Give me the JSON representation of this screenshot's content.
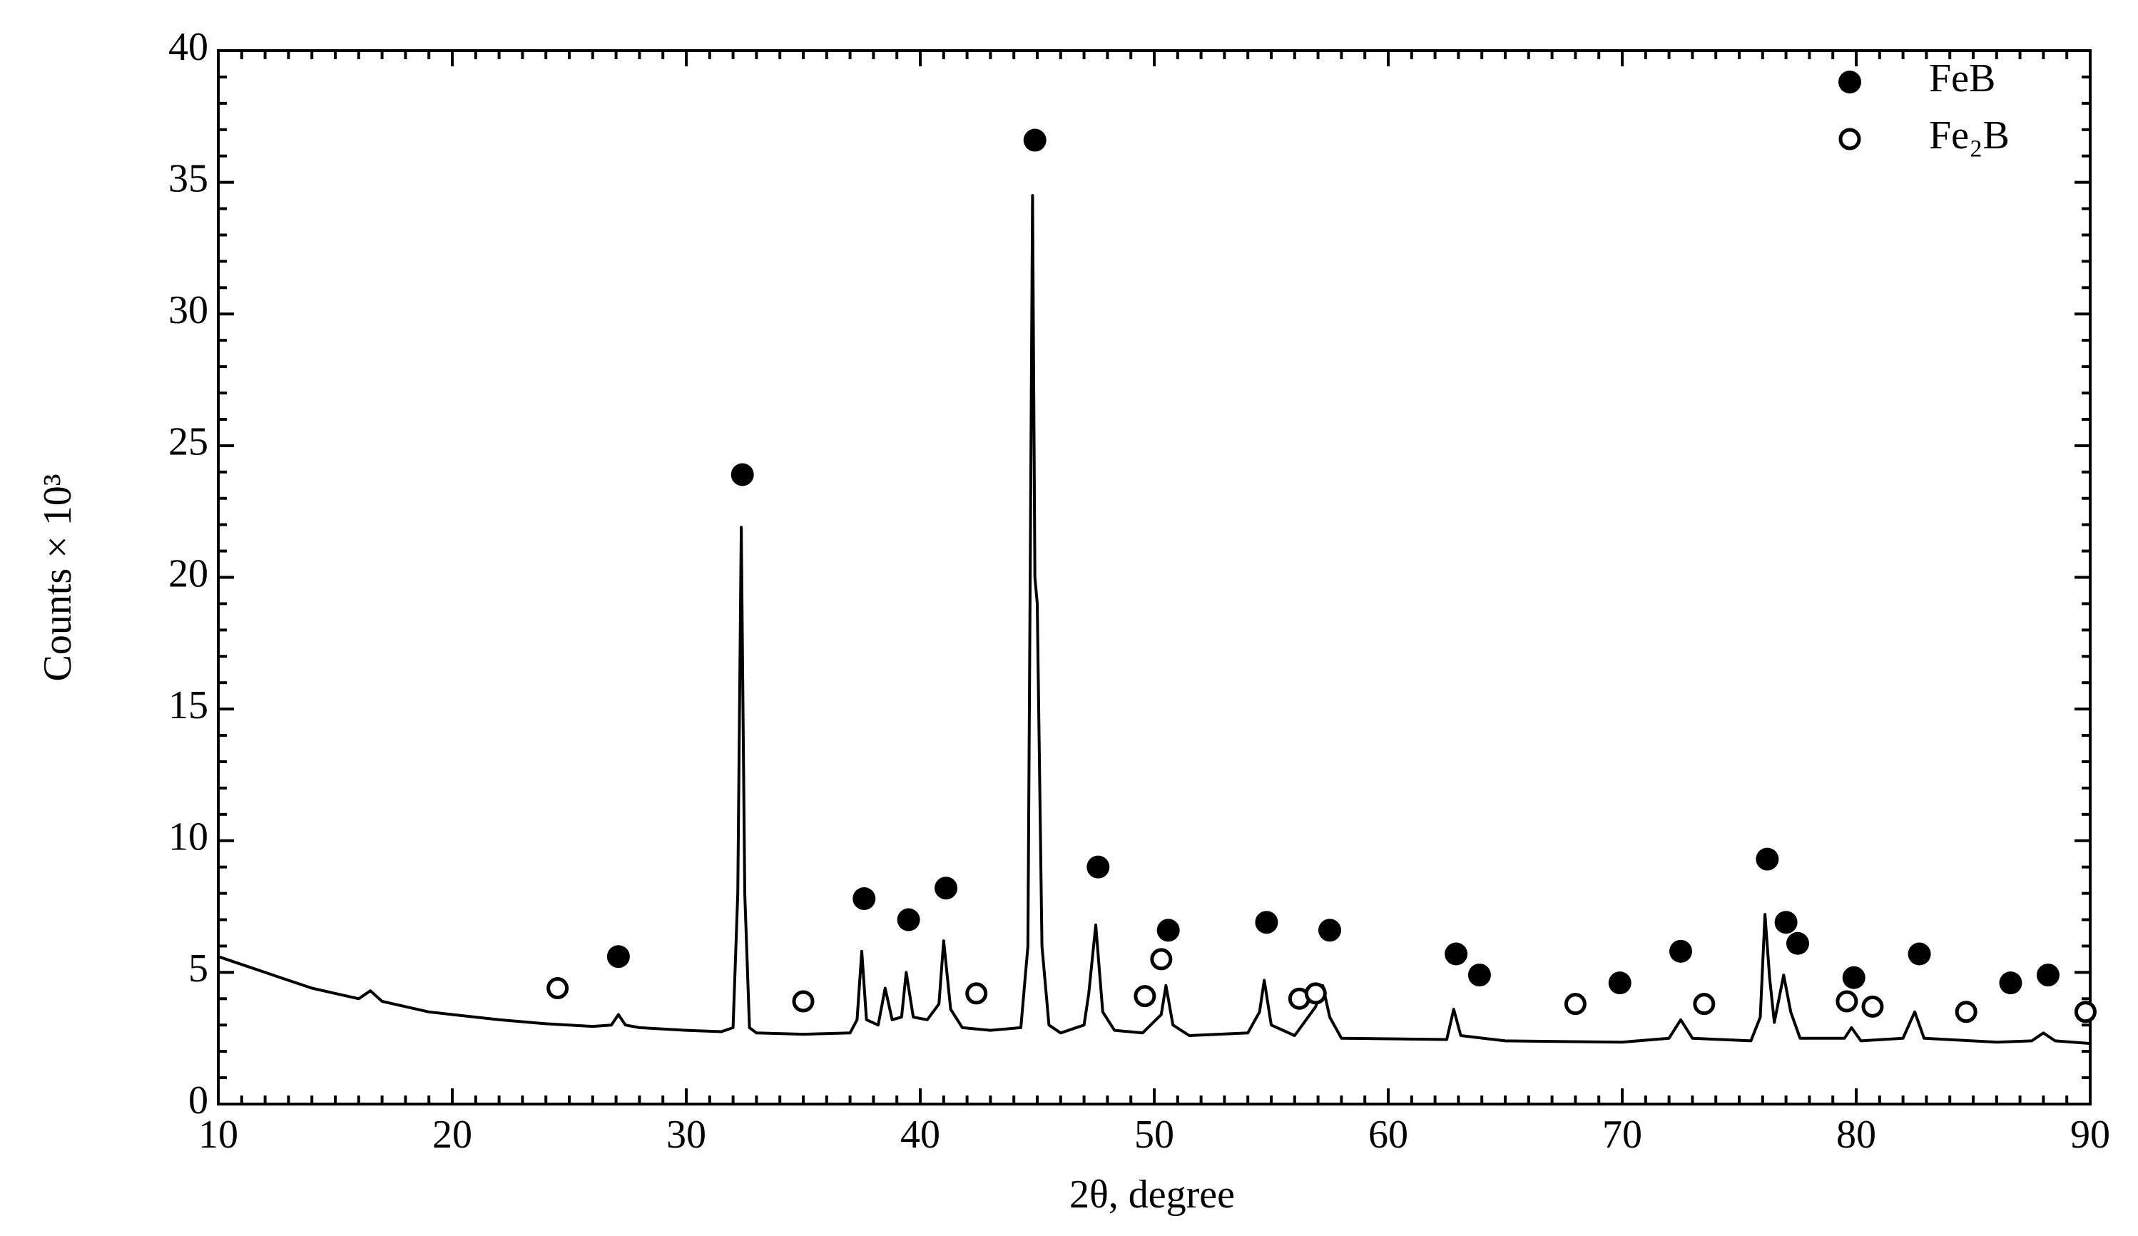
{
  "chart_data": {
    "type": "line",
    "xlabel": "2θ, degree",
    "ylabel": "Counts × 10³",
    "xlim": [
      10,
      90
    ],
    "ylim": [
      0,
      40
    ],
    "xticks": [
      10,
      20,
      30,
      40,
      50,
      60,
      70,
      80,
      90
    ],
    "yticks": [
      0,
      5,
      10,
      15,
      20,
      25,
      30,
      35,
      40
    ],
    "xminorticks": [
      11,
      12,
      13,
      14,
      15,
      16,
      17,
      18,
      19,
      21,
      22,
      23,
      24,
      25,
      26,
      27,
      28,
      29,
      31,
      32,
      33,
      34,
      35,
      36,
      37,
      38,
      39,
      41,
      42,
      43,
      44,
      45,
      46,
      47,
      48,
      49,
      51,
      52,
      53,
      54,
      55,
      56,
      57,
      58,
      59,
      61,
      62,
      63,
      64,
      65,
      66,
      67,
      68,
      69,
      71,
      72,
      73,
      74,
      75,
      76,
      77,
      78,
      79,
      81,
      82,
      83,
      84,
      85,
      86,
      87,
      88,
      89
    ],
    "yminorticks": [
      1,
      2,
      3,
      4,
      6,
      7,
      8,
      9,
      11,
      12,
      13,
      14,
      16,
      17,
      18,
      19,
      21,
      22,
      23,
      24,
      26,
      27,
      28,
      29,
      31,
      32,
      33,
      34,
      36,
      37,
      38,
      39
    ],
    "legend": "upper right",
    "x": [
      10,
      11,
      12,
      13,
      14,
      15,
      16,
      16.5,
      17,
      18,
      19,
      20,
      22,
      24,
      26,
      26.8,
      27.1,
      27.4,
      28,
      30,
      31.5,
      32.0,
      32.2,
      32.35,
      32.5,
      32.7,
      33,
      35,
      37,
      37.3,
      37.5,
      37.7,
      38.2,
      38.5,
      38.8,
      39.2,
      39.4,
      39.7,
      40.3,
      40.8,
      41.0,
      41.3,
      41.8,
      43,
      44.3,
      44.6,
      44.8,
      44.9,
      45.0,
      45.2,
      45.5,
      46,
      47,
      47.2,
      47.5,
      47.8,
      48.3,
      49.5,
      50.3,
      50.5,
      50.8,
      51.5,
      54,
      54.5,
      54.7,
      55.0,
      56,
      56.9,
      57.2,
      57.5,
      58,
      62.5,
      62.8,
      63.1,
      65,
      70,
      72,
      72.5,
      73,
      75.5,
      75.9,
      76.1,
      76.3,
      76.5,
      76.9,
      77.2,
      77.6,
      79.5,
      79.8,
      80.2,
      82,
      82.5,
      82.9,
      86,
      87.5,
      88,
      88.5,
      90
    ],
    "series": [
      {
        "color": "#000000",
        "values": [
          5.6,
          5.3,
          5.0,
          4.7,
          4.4,
          4.2,
          4.0,
          4.3,
          3.9,
          3.7,
          3.5,
          3.4,
          3.2,
          3.05,
          2.95,
          3.0,
          3.4,
          3.0,
          2.9,
          2.8,
          2.75,
          2.9,
          8,
          21.9,
          8,
          2.9,
          2.7,
          2.65,
          2.7,
          3.2,
          5.8,
          3.2,
          3.0,
          4.4,
          3.2,
          3.3,
          5.0,
          3.3,
          3.2,
          3.8,
          6.2,
          3.6,
          2.9,
          2.8,
          2.9,
          6,
          34.5,
          20,
          19,
          6,
          3.0,
          2.7,
          3.0,
          4.2,
          6.8,
          3.5,
          2.8,
          2.7,
          3.4,
          4.5,
          3.0,
          2.6,
          2.7,
          3.5,
          4.7,
          3.0,
          2.6,
          3.7,
          4.5,
          3.3,
          2.5,
          2.45,
          3.6,
          2.6,
          2.4,
          2.35,
          2.5,
          3.2,
          2.5,
          2.4,
          3.3,
          7.2,
          4.8,
          3.1,
          4.9,
          3.5,
          2.5,
          2.5,
          2.9,
          2.4,
          2.5,
          3.5,
          2.5,
          2.35,
          2.4,
          2.7,
          2.4,
          2.3
        ]
      }
    ],
    "markers": [
      {
        "name": "FeB",
        "color": "#000000",
        "filled": true,
        "x": [
          27.1,
          32.4,
          37.6,
          39.5,
          41.1,
          44.9,
          47.6,
          50.6,
          54.8,
          57.5,
          62.9,
          63.9,
          69.9,
          72.5,
          76.2,
          77.0,
          77.5,
          79.9,
          82.7,
          86.6,
          88.2
        ],
        "values": [
          5.6,
          23.9,
          7.8,
          7.0,
          8.2,
          36.6,
          9.0,
          6.6,
          6.9,
          6.6,
          5.7,
          4.9,
          4.6,
          5.8,
          9.3,
          6.9,
          6.1,
          4.8,
          5.7,
          4.6,
          4.9
        ]
      },
      {
        "name": "Fe₂B",
        "color": "#000000",
        "filled": false,
        "x": [
          24.5,
          35.0,
          42.4,
          49.6,
          50.3,
          56.2,
          56.9,
          68.0,
          73.5,
          79.6,
          80.7,
          84.7,
          89.8
        ],
        "values": [
          4.4,
          3.9,
          4.2,
          4.1,
          5.5,
          4.0,
          4.2,
          3.8,
          3.8,
          3.9,
          3.7,
          3.5,
          3.5
        ]
      }
    ]
  }
}
